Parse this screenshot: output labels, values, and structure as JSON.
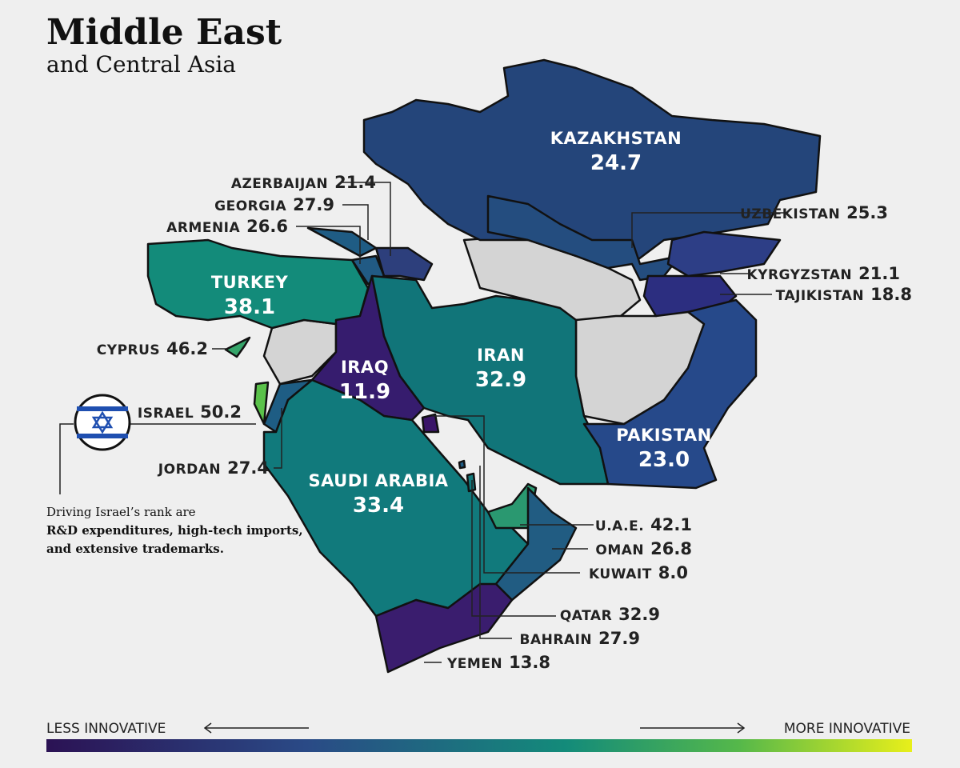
{
  "header": {
    "title": "Middle East",
    "subtitle": "and Central Asia"
  },
  "countries": [
    {
      "name": "KAZAKHSTAN",
      "score": "24.7",
      "color": "#24457a"
    },
    {
      "name": "UZBEKISTAN",
      "score": "25.3",
      "color": "#244d7f"
    },
    {
      "name": "KYRGYZSTAN",
      "score": "21.1",
      "color": "#2d3e86"
    },
    {
      "name": "TAJIKISTAN",
      "score": "18.8",
      "color": "#2c2e80"
    },
    {
      "name": "AZERBAIJAN",
      "score": "21.4",
      "color": "#2d3f7c"
    },
    {
      "name": "GEORGIA",
      "score": "27.9",
      "color": "#1f5c84"
    },
    {
      "name": "ARMENIA",
      "score": "26.6",
      "color": "#215a84"
    },
    {
      "name": "TURKEY",
      "score": "38.1",
      "color": "#138b7a"
    },
    {
      "name": "CYPRUS",
      "score": "46.2",
      "color": "#35a56a"
    },
    {
      "name": "ISRAEL",
      "score": "50.2",
      "color": "#5ac24a"
    },
    {
      "name": "JORDAN",
      "score": "27.4",
      "color": "#1e5d84"
    },
    {
      "name": "IRAQ",
      "score": "11.9",
      "color": "#361c6e"
    },
    {
      "name": "IRAN",
      "score": "32.9",
      "color": "#117579"
    },
    {
      "name": "PAKISTAN",
      "score": "23.0",
      "color": "#26498a"
    },
    {
      "name": "SAUDI ARABIA",
      "score": "33.4",
      "color": "#117a7c"
    },
    {
      "name": "U.A.E.",
      "score": "42.1",
      "color": "#2a9870"
    },
    {
      "name": "OMAN",
      "score": "26.8",
      "color": "#215c82"
    },
    {
      "name": "KUWAIT",
      "score": "8.0",
      "color": "#3a1568"
    },
    {
      "name": "QATAR",
      "score": "32.9",
      "color": "#127a7c"
    },
    {
      "name": "BAHRAIN",
      "score": "27.9",
      "color": "#1f5c84"
    },
    {
      "name": "YEMEN",
      "score": "13.8",
      "color": "#3a1d6e"
    }
  ],
  "note": {
    "text": "Driving Israel’s rank are",
    "bold": "R&D expenditures, high-tech imports, and extensive trademarks."
  },
  "legend": {
    "left": "LESS INNOVATIVE",
    "right": "MORE INNOVATIVE"
  }
}
